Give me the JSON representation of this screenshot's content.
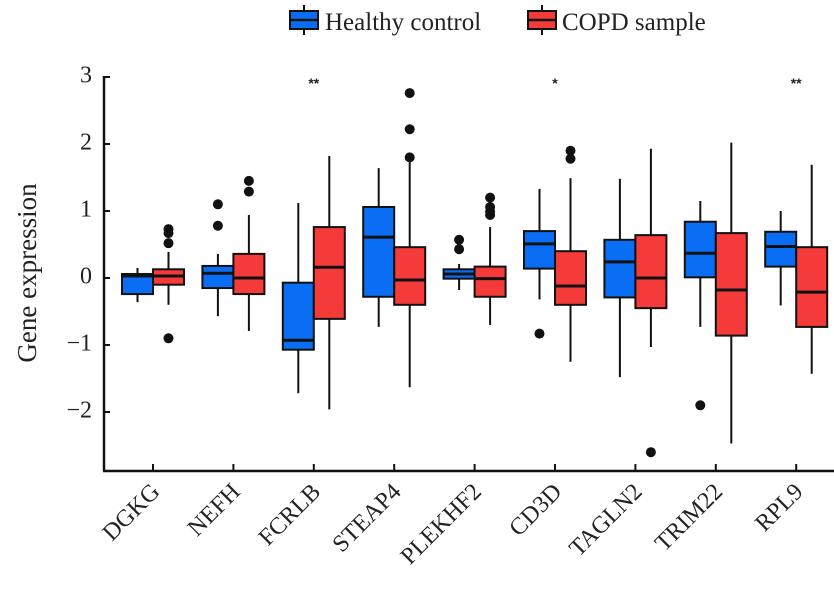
{
  "chart_data": {
    "type": "box",
    "title": "",
    "xlabel": "",
    "ylabel": "Gene expression",
    "ylim": [
      -2.87,
      3.0
    ],
    "yticks": [
      3,
      2,
      1,
      0,
      -1,
      -2
    ],
    "ytick_labels": [
      "3",
      "2",
      "1",
      "0",
      "−1",
      "−2"
    ],
    "grid": false,
    "legend_position": "top",
    "categories": [
      "DGKG",
      "NEFH",
      "FCRLB",
      "STEAP4",
      "PLEKHF2",
      "CD3D",
      "TAGLN2",
      "TRIM22",
      "RPL9"
    ],
    "significance": [
      "",
      "",
      "**",
      "",
      "",
      "*",
      "",
      "",
      "**"
    ],
    "series": [
      {
        "name": "Healthy control",
        "color": "#0a6ef5",
        "boxes": [
          {
            "whislo": -0.36,
            "q1": -0.24,
            "med": 0.03,
            "q3": 0.06,
            "whishi": 0.15,
            "fliers": []
          },
          {
            "whislo": -0.57,
            "q1": -0.15,
            "med": 0.07,
            "q3": 0.18,
            "whishi": 0.36,
            "fliers": [
              1.1,
              0.78
            ]
          },
          {
            "whislo": -1.72,
            "q1": -1.07,
            "med": -0.93,
            "q3": -0.07,
            "whishi": 1.12,
            "fliers": []
          },
          {
            "whislo": -0.73,
            "q1": -0.28,
            "med": 0.61,
            "q3": 1.06,
            "whishi": 1.64,
            "fliers": []
          },
          {
            "whislo": -0.18,
            "q1": -0.01,
            "med": 0.06,
            "q3": 0.13,
            "whishi": 0.21,
            "fliers": [
              0.57,
              0.43
            ]
          },
          {
            "whislo": -0.32,
            "q1": 0.14,
            "med": 0.51,
            "q3": 0.7,
            "whishi": 1.33,
            "fliers": [
              -0.83
            ]
          },
          {
            "whislo": -1.48,
            "q1": -0.29,
            "med": 0.24,
            "q3": 0.57,
            "whishi": 1.48,
            "fliers": []
          },
          {
            "whislo": -0.73,
            "q1": 0.01,
            "med": 0.37,
            "q3": 0.84,
            "whishi": 1.15,
            "fliers": [
              -1.9
            ]
          },
          {
            "whislo": -0.41,
            "q1": 0.17,
            "med": 0.47,
            "q3": 0.69,
            "whishi": 1.0,
            "fliers": []
          }
        ]
      },
      {
        "name": "COPD sample",
        "color": "#f53a3a",
        "boxes": [
          {
            "whislo": -0.4,
            "q1": -0.1,
            "med": 0.03,
            "q3": 0.13,
            "whishi": 0.39,
            "fliers": [
              0.73,
              0.67,
              0.52,
              -0.9
            ]
          },
          {
            "whislo": -0.79,
            "q1": -0.24,
            "med": 0.0,
            "q3": 0.36,
            "whishi": 0.94,
            "fliers": [
              1.45,
              1.29
            ]
          },
          {
            "whislo": -1.96,
            "q1": -0.61,
            "med": 0.16,
            "q3": 0.76,
            "whishi": 1.82,
            "fliers": []
          },
          {
            "whislo": -1.63,
            "q1": -0.4,
            "med": -0.03,
            "q3": 0.46,
            "whishi": 1.73,
            "fliers": [
              2.76,
              2.22,
              1.8
            ]
          },
          {
            "whislo": -0.7,
            "q1": -0.28,
            "med": -0.01,
            "q3": 0.17,
            "whishi": 0.76,
            "fliers": [
              1.2,
              1.06,
              0.99,
              0.94
            ]
          },
          {
            "whislo": -1.25,
            "q1": -0.4,
            "med": -0.12,
            "q3": 0.4,
            "whishi": 1.49,
            "fliers": [
              1.9,
              1.78
            ]
          },
          {
            "whislo": -1.03,
            "q1": -0.45,
            "med": 0.0,
            "q3": 0.64,
            "whishi": 1.93,
            "fliers": [
              -2.6
            ]
          },
          {
            "whislo": -2.47,
            "q1": -0.86,
            "med": -0.18,
            "q3": 0.67,
            "whishi": 2.02,
            "fliers": []
          },
          {
            "whislo": -1.43,
            "q1": -0.73,
            "med": -0.21,
            "q3": 0.46,
            "whishi": 1.69,
            "fliers": []
          }
        ]
      }
    ]
  }
}
